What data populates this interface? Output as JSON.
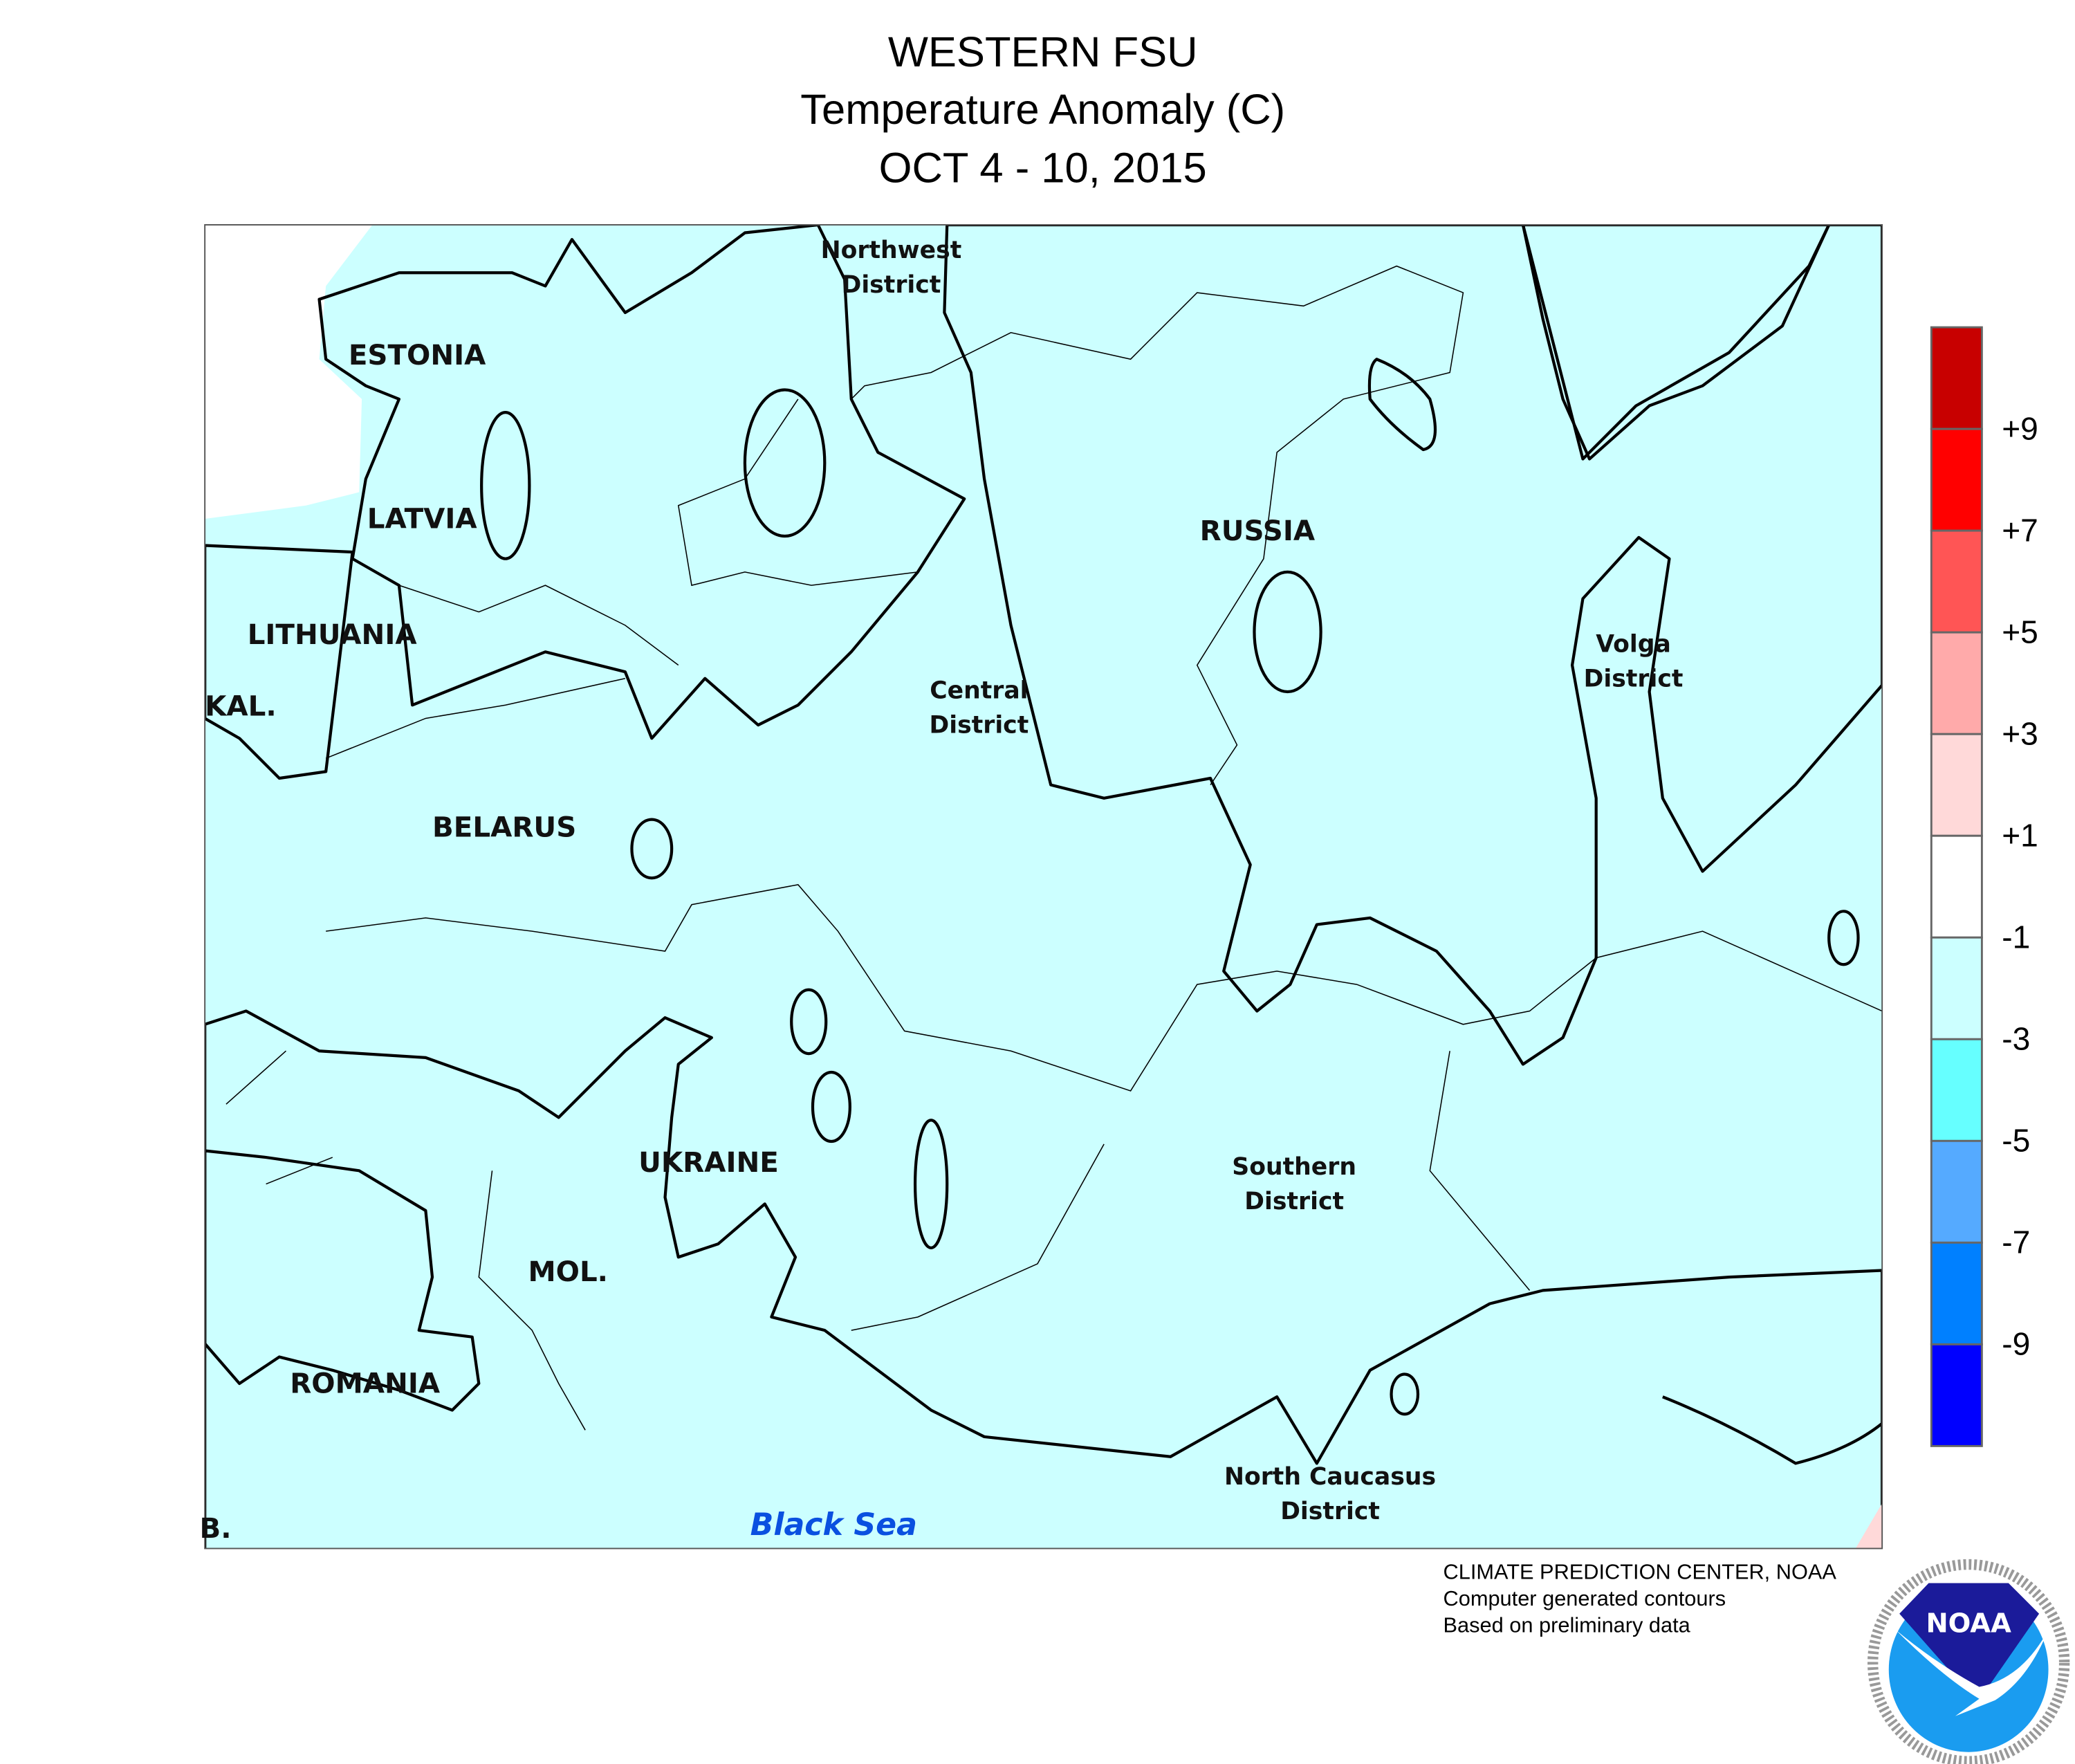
{
  "header": {
    "title": "WESTERN FSU",
    "subtitle": "Temperature Anomaly (C)",
    "date_range": "OCT 4 - 10, 2015"
  },
  "map": {
    "labels": {
      "northwest": [
        "Northwest",
        "District"
      ],
      "estonia": "ESTONIA",
      "latvia": "LATVIA",
      "lithuania": "LITHUANIA",
      "kal": "KAL.",
      "belarus": "BELARUS",
      "russia": "RUSSIA",
      "central": [
        "Central",
        "District"
      ],
      "volga": [
        "Volga",
        "District"
      ],
      "ukraine": "UKRAINE",
      "southern": [
        "Southern",
        "District"
      ],
      "moldova": "MOL.",
      "romania": "ROMANIA",
      "north_caucasus": [
        "North Caucasus",
        "District"
      ],
      "serbia_partial": "B.",
      "black_sea": "Black Sea"
    }
  },
  "legend": {
    "ticks": [
      "+9",
      "+7",
      "+5",
      "+3",
      "+1",
      "-1",
      "-3",
      "-5",
      "-7",
      "-9"
    ],
    "colors": [
      "#c80000",
      "#ff0000",
      "#ff5555",
      "#ffaaaa",
      "#ffd9d9",
      "#ffffff",
      "#ccffff",
      "#66ffff",
      "#55aaff",
      "#0080ff",
      "#0000ff"
    ]
  },
  "credits": {
    "line1": "CLIMATE PREDICTION CENTER, NOAA",
    "line2": "Computer generated contours",
    "line3": "Based on preliminary data"
  },
  "logo": {
    "text": "NOAA",
    "ring_text": "NATIONAL OCEANIC AND ATMOSPHERIC ADMINISTRATION · U.S. DEPARTMENT OF COMMERCE"
  }
}
